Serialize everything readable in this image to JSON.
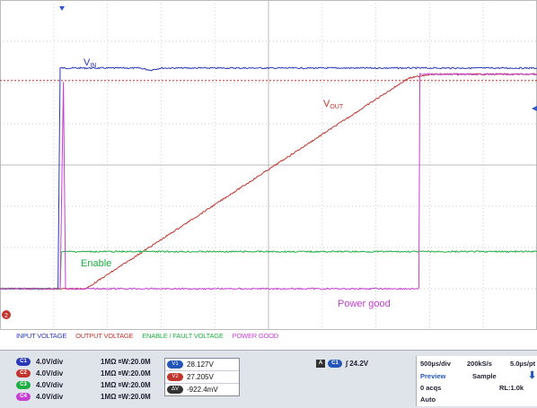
{
  "colors": {
    "ch1": "#2a39b8",
    "ch2": "#c0352e",
    "ch3": "#1fae43",
    "ch4": "#c63fd2"
  },
  "chart_data": {
    "type": "line",
    "xlim": [
      0,
      10
    ],
    "ylim": [
      -4,
      4
    ],
    "grid": true,
    "annotations": [
      {
        "text": "V",
        "sub": "IN"
      },
      {
        "text": "V",
        "sub": "OUT"
      },
      {
        "text": "Enable"
      },
      {
        "text": "Power good"
      }
    ],
    "series": [
      {
        "name": "INPUT VOLTAGE",
        "color": "#2a39b8",
        "x": [
          0,
          1.08,
          1.12,
          2.6,
          2.8,
          3.0,
          10
        ],
        "y": [
          -3.0,
          -3.0,
          2.35,
          2.35,
          2.3,
          2.35,
          2.35
        ]
      },
      {
        "name": "OUTPUT VOLTAGE",
        "color": "#c0352e",
        "x": [
          0,
          1.6,
          7.6,
          8.0,
          10
        ],
        "y": [
          -3.0,
          -3.0,
          2.1,
          2.2,
          2.2
        ]
      },
      {
        "name": "ENABLE / FAULT VOLTAGE",
        "color": "#1fae43",
        "x": [
          0,
          1.12,
          1.14,
          10
        ],
        "y": [
          -3.0,
          -3.0,
          -2.1,
          -2.1
        ]
      },
      {
        "name": "POWER GOOD",
        "color": "#c63fd2",
        "x": [
          0,
          1.12,
          1.18,
          1.22,
          7.8,
          7.82,
          10
        ],
        "y": [
          -3.0,
          -3.0,
          2.0,
          -3.0,
          -3.0,
          2.2,
          2.2
        ]
      }
    ]
  },
  "legend": [
    "INPUT VOLTAGE",
    "OUTPUT VOLTAGE",
    "ENABLE / FAULT VOLTAGE",
    "POWER GOOD"
  ],
  "channels": [
    {
      "id": "C1",
      "volts": "4.0V/div",
      "imp": "1MΩ",
      "bw": "B",
      "bwv": "W:20.0M",
      "color": "#2a39b8"
    },
    {
      "id": "C2",
      "volts": "4.0V/div",
      "imp": "1MΩ",
      "bw": "B",
      "bwv": "W:20.0M",
      "color": "#c0352e"
    },
    {
      "id": "C3",
      "volts": "4.0V/div",
      "imp": "1MΩ",
      "bw": "B",
      "bwv": "W:20.0M",
      "color": "#1fae43"
    },
    {
      "id": "C4",
      "volts": "4.0V/div",
      "imp": "1MΩ",
      "bw": "B",
      "bwv": "W:20.0M",
      "color": "#c63fd2"
    }
  ],
  "measurements": [
    {
      "label": "V1",
      "value": "28.127V",
      "color": "#2456b8"
    },
    {
      "label": "V2",
      "value": "27.205V",
      "color": "#c0352e"
    },
    {
      "label": "ΔV",
      "value": "-922.4mV",
      "color": "#333333"
    }
  ],
  "trigger": {
    "mode": "A",
    "source": "C1",
    "slope": "∫",
    "level": "24.2V"
  },
  "timebase": {
    "tdiv": "500µs/div",
    "rate": "200kS/s",
    "pt": "5.0µs/pt",
    "state": "Preview",
    "acq": "Sample",
    "acqs": "0 acqs",
    "rl": "RL:1.0k",
    "trig": "Auto"
  }
}
